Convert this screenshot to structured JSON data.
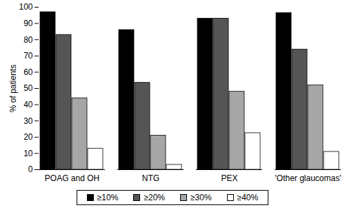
{
  "chart_data": {
    "type": "bar",
    "ylabel": "% of patients",
    "categories": [
      "POAG and OH",
      "NTG",
      "PEX",
      "'Other glaucomas'"
    ],
    "series": [
      {
        "name": "≥10%",
        "color": "#000000",
        "values": [
          97,
          86,
          93,
          96.5
        ]
      },
      {
        "name": "≥20%",
        "color": "#555555",
        "values": [
          83,
          53.5,
          93,
          74
        ]
      },
      {
        "name": "≥30%",
        "color": "#a6a6a6",
        "values": [
          44,
          21,
          48,
          52
        ]
      },
      {
        "name": "≥40%",
        "color": "#ffffff",
        "values": [
          13,
          3,
          22.5,
          11
        ]
      }
    ],
    "ylim": [
      0,
      100
    ],
    "yticks": [
      0,
      10,
      20,
      30,
      40,
      50,
      60,
      70,
      80,
      90,
      100
    ],
    "legend": "bottom"
  }
}
